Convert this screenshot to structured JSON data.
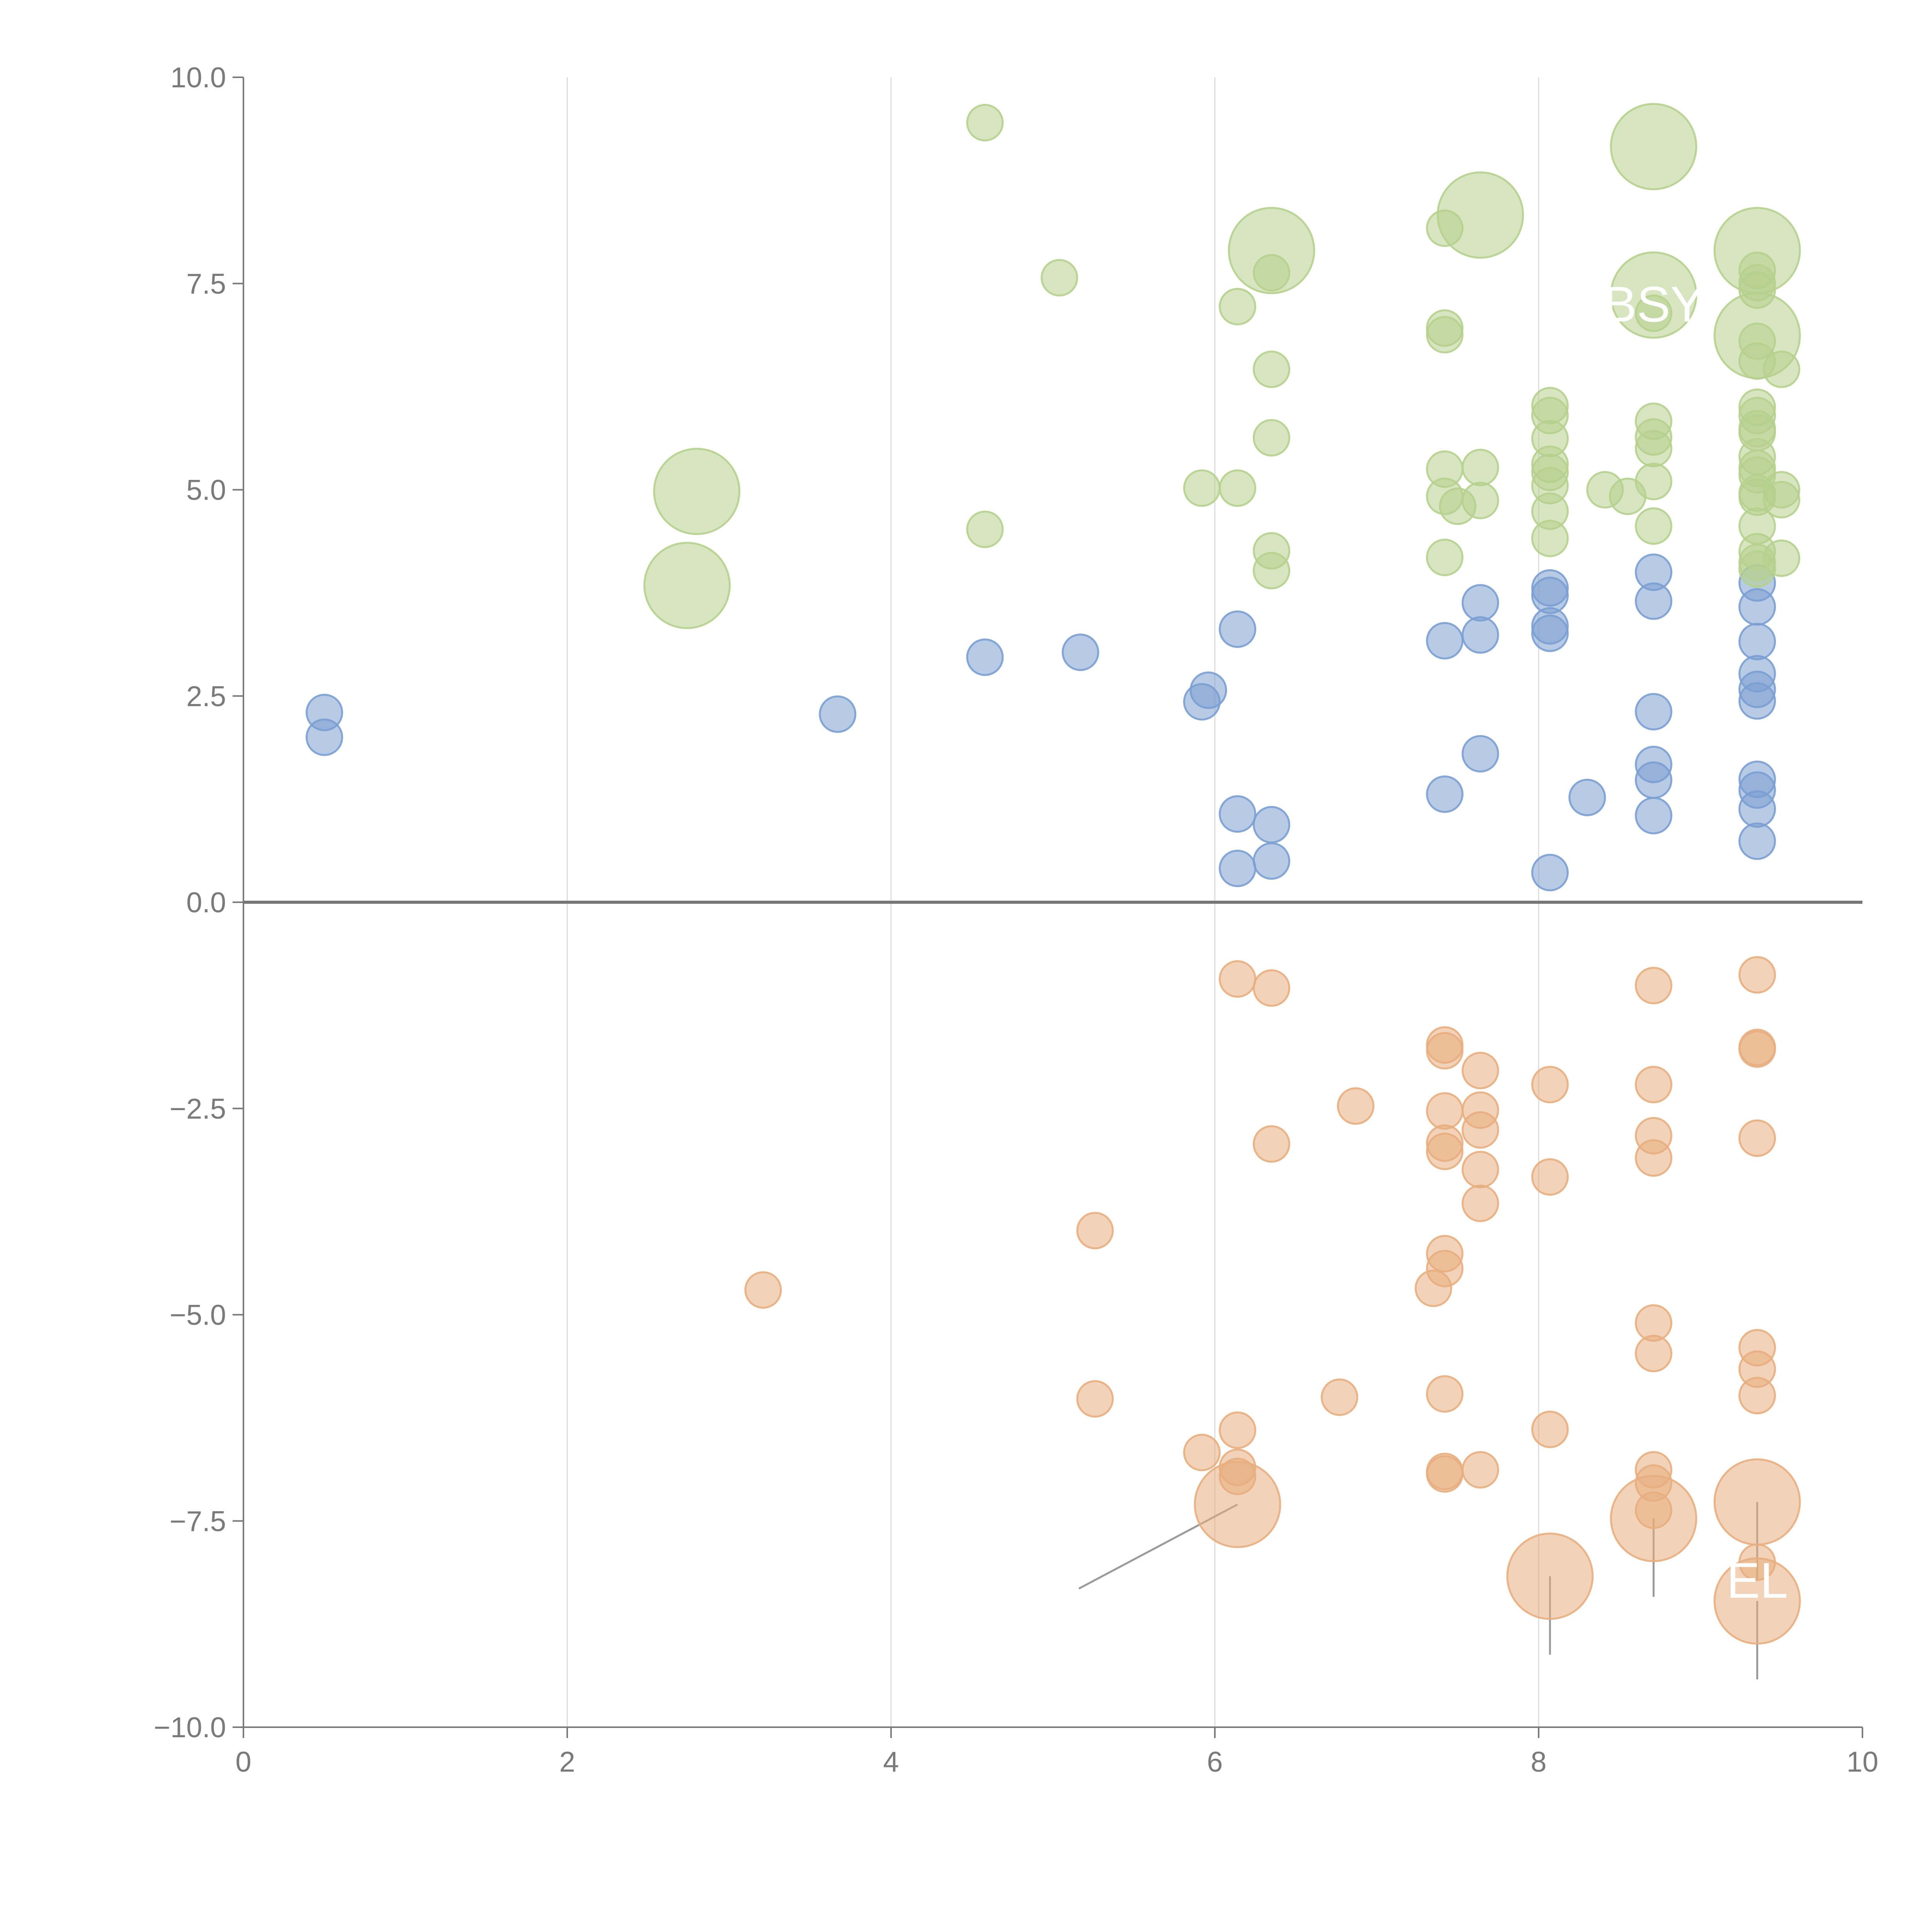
{
  "chart_data": {
    "type": "scatter",
    "subtype": "bubble",
    "title": "",
    "xlabel": "",
    "ylabel": "",
    "xlim": [
      0,
      10
    ],
    "ylim": [
      -10,
      10
    ],
    "x_ticks": [
      0,
      2,
      4,
      6,
      8,
      10
    ],
    "y_ticks": [
      -10,
      -7.5,
      -5,
      -2.5,
      0,
      2.5,
      5,
      7.5,
      10
    ],
    "x_tick_labels": [
      "0",
      "2",
      "4",
      "6",
      "8",
      "10"
    ],
    "y_tick_labels": [
      "−10.0",
      "−7.5",
      "−5.0",
      "−2.5",
      "0.0",
      "2.5",
      "5.0",
      "7.5",
      "10.0"
    ],
    "grid": "vertical",
    "zero_line": true,
    "series": [
      {
        "name": "blue",
        "color": "#7b9fd1",
        "points": [
          {
            "x": 0.5,
            "y": 2.3,
            "size": 1
          },
          {
            "x": 0.5,
            "y": 2.0,
            "size": 1
          },
          {
            "x": 3.67,
            "y": 2.28,
            "size": 1
          },
          {
            "x": 4.58,
            "y": 2.97,
            "size": 1
          },
          {
            "x": 5.17,
            "y": 3.03,
            "size": 1
          },
          {
            "x": 5.92,
            "y": 2.43,
            "size": 1
          },
          {
            "x": 5.96,
            "y": 2.57,
            "size": 1
          },
          {
            "x": 6.14,
            "y": 3.31,
            "size": 1
          },
          {
            "x": 6.14,
            "y": 1.07,
            "size": 1
          },
          {
            "x": 6.14,
            "y": 0.41,
            "size": 1
          },
          {
            "x": 6.35,
            "y": 0.94,
            "size": 1
          },
          {
            "x": 6.35,
            "y": 0.5,
            "size": 1
          },
          {
            "x": 7.42,
            "y": 3.17,
            "size": 1
          },
          {
            "x": 7.42,
            "y": 1.31,
            "size": 1
          },
          {
            "x": 7.64,
            "y": 3.63,
            "size": 1
          },
          {
            "x": 7.64,
            "y": 3.24,
            "size": 1
          },
          {
            "x": 7.64,
            "y": 1.8,
            "size": 1
          },
          {
            "x": 8.07,
            "y": 3.81,
            "size": 1
          },
          {
            "x": 8.07,
            "y": 3.72,
            "size": 1
          },
          {
            "x": 8.07,
            "y": 3.35,
            "size": 1
          },
          {
            "x": 8.07,
            "y": 3.26,
            "size": 1
          },
          {
            "x": 8.07,
            "y": 0.36,
            "size": 1
          },
          {
            "x": 8.3,
            "y": 1.27,
            "size": 1
          },
          {
            "x": 8.71,
            "y": 4.0,
            "size": 1
          },
          {
            "x": 8.71,
            "y": 3.65,
            "size": 1
          },
          {
            "x": 8.71,
            "y": 2.31,
            "size": 1
          },
          {
            "x": 8.71,
            "y": 1.67,
            "size": 1
          },
          {
            "x": 8.71,
            "y": 1.48,
            "size": 1
          },
          {
            "x": 8.71,
            "y": 1.05,
            "size": 1
          },
          {
            "x": 9.35,
            "y": 3.87,
            "size": 1
          },
          {
            "x": 9.35,
            "y": 3.58,
            "size": 1
          },
          {
            "x": 9.35,
            "y": 3.16,
            "size": 1
          },
          {
            "x": 9.35,
            "y": 2.77,
            "size": 1
          },
          {
            "x": 9.35,
            "y": 2.58,
            "size": 1
          },
          {
            "x": 9.35,
            "y": 2.44,
            "size": 1
          },
          {
            "x": 9.35,
            "y": 1.49,
            "size": 1
          },
          {
            "x": 9.35,
            "y": 1.36,
            "size": 1
          },
          {
            "x": 9.35,
            "y": 1.13,
            "size": 1
          },
          {
            "x": 9.35,
            "y": 0.74,
            "size": 1
          }
        ]
      },
      {
        "name": "green",
        "color": "#b6d08e",
        "points": [
          {
            "x": 4.58,
            "y": 9.45,
            "size": 1
          },
          {
            "x": 5.04,
            "y": 7.57,
            "size": 1
          },
          {
            "x": 2.8,
            "y": 4.98,
            "size": 2.4
          },
          {
            "x": 2.74,
            "y": 3.84,
            "size": 2.4
          },
          {
            "x": 4.58,
            "y": 4.52,
            "size": 1
          },
          {
            "x": 5.92,
            "y": 5.02,
            "size": 1
          },
          {
            "x": 6.14,
            "y": 5.02,
            "size": 1
          },
          {
            "x": 6.14,
            "y": 7.22,
            "size": 1
          },
          {
            "x": 6.35,
            "y": 7.9,
            "size": 2.4
          },
          {
            "x": 6.35,
            "y": 7.63,
            "size": 1
          },
          {
            "x": 6.35,
            "y": 6.46,
            "size": 1
          },
          {
            "x": 6.35,
            "y": 5.63,
            "size": 1
          },
          {
            "x": 6.35,
            "y": 4.26,
            "size": 1
          },
          {
            "x": 6.35,
            "y": 4.02,
            "size": 1
          },
          {
            "x": 7.42,
            "y": 8.17,
            "size": 1
          },
          {
            "x": 7.42,
            "y": 6.96,
            "size": 1
          },
          {
            "x": 7.42,
            "y": 6.88,
            "size": 1
          },
          {
            "x": 7.42,
            "y": 5.25,
            "size": 1
          },
          {
            "x": 7.42,
            "y": 4.92,
            "size": 1
          },
          {
            "x": 7.42,
            "y": 4.18,
            "size": 1
          },
          {
            "x": 7.5,
            "y": 4.8,
            "size": 1
          },
          {
            "x": 7.64,
            "y": 8.33,
            "size": 2.4
          },
          {
            "x": 7.64,
            "y": 5.27,
            "size": 1
          },
          {
            "x": 7.64,
            "y": 4.87,
            "size": 1
          },
          {
            "x": 8.07,
            "y": 6.02,
            "size": 1
          },
          {
            "x": 8.07,
            "y": 5.9,
            "size": 1
          },
          {
            "x": 8.07,
            "y": 5.62,
            "size": 1
          },
          {
            "x": 8.07,
            "y": 5.31,
            "size": 1
          },
          {
            "x": 8.07,
            "y": 5.21,
            "size": 1
          },
          {
            "x": 8.07,
            "y": 5.05,
            "size": 1
          },
          {
            "x": 8.07,
            "y": 4.74,
            "size": 1
          },
          {
            "x": 8.07,
            "y": 4.41,
            "size": 1
          },
          {
            "x": 8.41,
            "y": 5.0,
            "size": 1
          },
          {
            "x": 8.55,
            "y": 4.92,
            "size": 1
          },
          {
            "x": 8.71,
            "y": 9.16,
            "size": 2.4
          },
          {
            "x": 8.71,
            "y": 7.36,
            "size": 2.4
          },
          {
            "x": 8.71,
            "y": 7.14,
            "size": 1
          },
          {
            "x": 8.71,
            "y": 5.83,
            "size": 1
          },
          {
            "x": 8.71,
            "y": 5.64,
            "size": 1
          },
          {
            "x": 8.71,
            "y": 5.5,
            "size": 1
          },
          {
            "x": 8.71,
            "y": 5.1,
            "size": 1
          },
          {
            "x": 8.71,
            "y": 4.56,
            "size": 1
          },
          {
            "x": 9.35,
            "y": 7.9,
            "size": 2.4
          },
          {
            "x": 9.35,
            "y": 7.66,
            "size": 1
          },
          {
            "x": 9.35,
            "y": 7.51,
            "size": 1
          },
          {
            "x": 9.35,
            "y": 7.42,
            "size": 1
          },
          {
            "x": 9.35,
            "y": 6.87,
            "size": 2.4
          },
          {
            "x": 9.35,
            "y": 6.8,
            "size": 1
          },
          {
            "x": 9.35,
            "y": 6.56,
            "size": 1
          },
          {
            "x": 9.35,
            "y": 6.0,
            "size": 1
          },
          {
            "x": 9.35,
            "y": 5.9,
            "size": 1
          },
          {
            "x": 9.35,
            "y": 5.74,
            "size": 1
          },
          {
            "x": 9.35,
            "y": 5.69,
            "size": 1
          },
          {
            "x": 9.35,
            "y": 5.4,
            "size": 1
          },
          {
            "x": 9.35,
            "y": 5.26,
            "size": 1
          },
          {
            "x": 9.35,
            "y": 5.18,
            "size": 1
          },
          {
            "x": 9.35,
            "y": 4.96,
            "size": 1
          },
          {
            "x": 9.35,
            "y": 4.91,
            "size": 1
          },
          {
            "x": 9.35,
            "y": 4.56,
            "size": 1
          },
          {
            "x": 9.35,
            "y": 4.25,
            "size": 1
          },
          {
            "x": 9.35,
            "y": 4.12,
            "size": 1
          },
          {
            "x": 9.35,
            "y": 4.04,
            "size": 1
          },
          {
            "x": 9.5,
            "y": 6.46,
            "size": 1
          },
          {
            "x": 9.5,
            "y": 5.0,
            "size": 1
          },
          {
            "x": 9.5,
            "y": 4.88,
            "size": 1
          },
          {
            "x": 9.5,
            "y": 4.17,
            "size": 1
          }
        ]
      },
      {
        "name": "orange",
        "color": "#e8ae7f",
        "points": [
          {
            "x": 3.21,
            "y": -4.7,
            "size": 1
          },
          {
            "x": 5.26,
            "y": -3.98,
            "size": 1
          },
          {
            "x": 5.26,
            "y": -6.02,
            "size": 1
          },
          {
            "x": 5.92,
            "y": -6.67,
            "size": 1
          },
          {
            "x": 6.14,
            "y": -0.93,
            "size": 1
          },
          {
            "x": 6.14,
            "y": -6.4,
            "size": 1
          },
          {
            "x": 6.14,
            "y": -6.85,
            "size": 1
          },
          {
            "x": 6.14,
            "y": -6.96,
            "size": 1
          },
          {
            "x": 6.14,
            "y": -7.3,
            "size": 2.4
          },
          {
            "x": 6.35,
            "y": -1.04,
            "size": 1
          },
          {
            "x": 6.35,
            "y": -2.93,
            "size": 1
          },
          {
            "x": 6.77,
            "y": -6.0,
            "size": 1
          },
          {
            "x": 6.87,
            "y": -2.47,
            "size": 1
          },
          {
            "x": 7.35,
            "y": -4.68,
            "size": 1
          },
          {
            "x": 7.42,
            "y": -1.73,
            "size": 1
          },
          {
            "x": 7.42,
            "y": -1.8,
            "size": 1
          },
          {
            "x": 7.42,
            "y": -2.53,
            "size": 1
          },
          {
            "x": 7.42,
            "y": -2.92,
            "size": 1
          },
          {
            "x": 7.42,
            "y": -3.02,
            "size": 1
          },
          {
            "x": 7.42,
            "y": -4.26,
            "size": 1
          },
          {
            "x": 7.42,
            "y": -4.44,
            "size": 1
          },
          {
            "x": 7.42,
            "y": -5.96,
            "size": 1
          },
          {
            "x": 7.42,
            "y": -6.9,
            "size": 1
          },
          {
            "x": 7.42,
            "y": -6.93,
            "size": 1
          },
          {
            "x": 7.64,
            "y": -2.04,
            "size": 1
          },
          {
            "x": 7.64,
            "y": -2.52,
            "size": 1
          },
          {
            "x": 7.64,
            "y": -2.76,
            "size": 1
          },
          {
            "x": 7.64,
            "y": -3.24,
            "size": 1
          },
          {
            "x": 7.64,
            "y": -3.65,
            "size": 1
          },
          {
            "x": 7.64,
            "y": -6.88,
            "size": 1
          },
          {
            "x": 8.07,
            "y": -2.21,
            "size": 1
          },
          {
            "x": 8.07,
            "y": -3.33,
            "size": 1
          },
          {
            "x": 8.07,
            "y": -6.39,
            "size": 1
          },
          {
            "x": 8.07,
            "y": -8.17,
            "size": 2.4
          },
          {
            "x": 8.71,
            "y": -1.01,
            "size": 1
          },
          {
            "x": 8.71,
            "y": -2.21,
            "size": 1
          },
          {
            "x": 8.71,
            "y": -2.83,
            "size": 1
          },
          {
            "x": 8.71,
            "y": -3.1,
            "size": 1
          },
          {
            "x": 8.71,
            "y": -5.1,
            "size": 1
          },
          {
            "x": 8.71,
            "y": -5.47,
            "size": 1
          },
          {
            "x": 8.71,
            "y": -6.88,
            "size": 1
          },
          {
            "x": 8.71,
            "y": -7.04,
            "size": 1
          },
          {
            "x": 8.71,
            "y": -7.37,
            "size": 1
          },
          {
            "x": 8.71,
            "y": -7.47,
            "size": 2.4
          },
          {
            "x": 9.35,
            "y": -0.88,
            "size": 1
          },
          {
            "x": 9.35,
            "y": -1.76,
            "size": 1
          },
          {
            "x": 9.35,
            "y": -1.78,
            "size": 1
          },
          {
            "x": 9.35,
            "y": -2.86,
            "size": 1
          },
          {
            "x": 9.35,
            "y": -5.4,
            "size": 1
          },
          {
            "x": 9.35,
            "y": -5.66,
            "size": 1
          },
          {
            "x": 9.35,
            "y": -5.98,
            "size": 1
          },
          {
            "x": 9.35,
            "y": -7.27,
            "size": 2.4
          },
          {
            "x": 9.35,
            "y": -8.0,
            "size": 1
          },
          {
            "x": 9.35,
            "y": -8.47,
            "size": 2.4
          }
        ]
      }
    ],
    "annotations": [
      {
        "text": "BSY",
        "x": 8.71,
        "y": 7.25
      },
      {
        "text": "EL",
        "x": 9.35,
        "y": -8.22
      }
    ]
  }
}
